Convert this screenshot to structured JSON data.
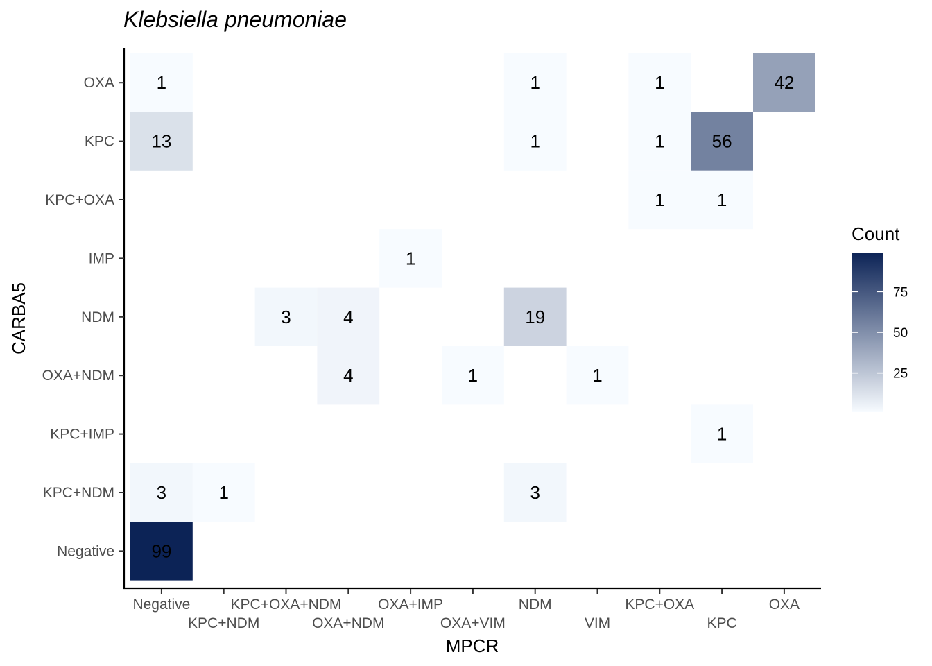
{
  "chart_data": {
    "type": "heatmap",
    "title": "Klebsiella pneumoniae",
    "xlabel": "MPCR",
    "ylabel": "CARBA5",
    "x_categories": [
      "Negative",
      "KPC+NDM",
      "KPC+OXA+NDM",
      "OXA+NDM",
      "OXA+IMP",
      "OXA+VIM",
      "NDM",
      "VIM",
      "KPC+OXA",
      "KPC",
      "OXA"
    ],
    "y_categories": [
      "OXA",
      "KPC",
      "KPC+OXA",
      "IMP",
      "NDM",
      "OXA+NDM",
      "KPC+IMP",
      "KPC+NDM",
      "Negative"
    ],
    "cells": [
      {
        "x": "Negative",
        "y": "OXA",
        "value": 1
      },
      {
        "x": "NDM",
        "y": "OXA",
        "value": 1
      },
      {
        "x": "KPC+OXA",
        "y": "OXA",
        "value": 1
      },
      {
        "x": "OXA",
        "y": "OXA",
        "value": 42
      },
      {
        "x": "Negative",
        "y": "KPC",
        "value": 13
      },
      {
        "x": "NDM",
        "y": "KPC",
        "value": 1
      },
      {
        "x": "KPC+OXA",
        "y": "KPC",
        "value": 1
      },
      {
        "x": "KPC",
        "y": "KPC",
        "value": 56
      },
      {
        "x": "KPC+OXA",
        "y": "KPC+OXA",
        "value": 1
      },
      {
        "x": "KPC",
        "y": "KPC+OXA",
        "value": 1
      },
      {
        "x": "OXA+IMP",
        "y": "IMP",
        "value": 1
      },
      {
        "x": "KPC+OXA+NDM",
        "y": "NDM",
        "value": 3
      },
      {
        "x": "OXA+NDM",
        "y": "NDM",
        "value": 4
      },
      {
        "x": "NDM",
        "y": "NDM",
        "value": 19
      },
      {
        "x": "OXA+NDM",
        "y": "OXA+NDM",
        "value": 4
      },
      {
        "x": "OXA+VIM",
        "y": "OXA+NDM",
        "value": 1
      },
      {
        "x": "VIM",
        "y": "OXA+NDM",
        "value": 1
      },
      {
        "x": "KPC",
        "y": "KPC+IMP",
        "value": 1
      },
      {
        "x": "Negative",
        "y": "KPC+NDM",
        "value": 3
      },
      {
        "x": "KPC+NDM",
        "y": "KPC+NDM",
        "value": 1
      },
      {
        "x": "NDM",
        "y": "KPC+NDM",
        "value": 3
      },
      {
        "x": "Negative",
        "y": "Negative",
        "value": 99
      }
    ],
    "legend": {
      "title": "Count",
      "ticks": [
        25,
        50,
        75
      ],
      "range": [
        1,
        99
      ],
      "low_color": "#f7fbff",
      "high_color": "#0c2356",
      "placement": "right"
    },
    "grid": false
  }
}
